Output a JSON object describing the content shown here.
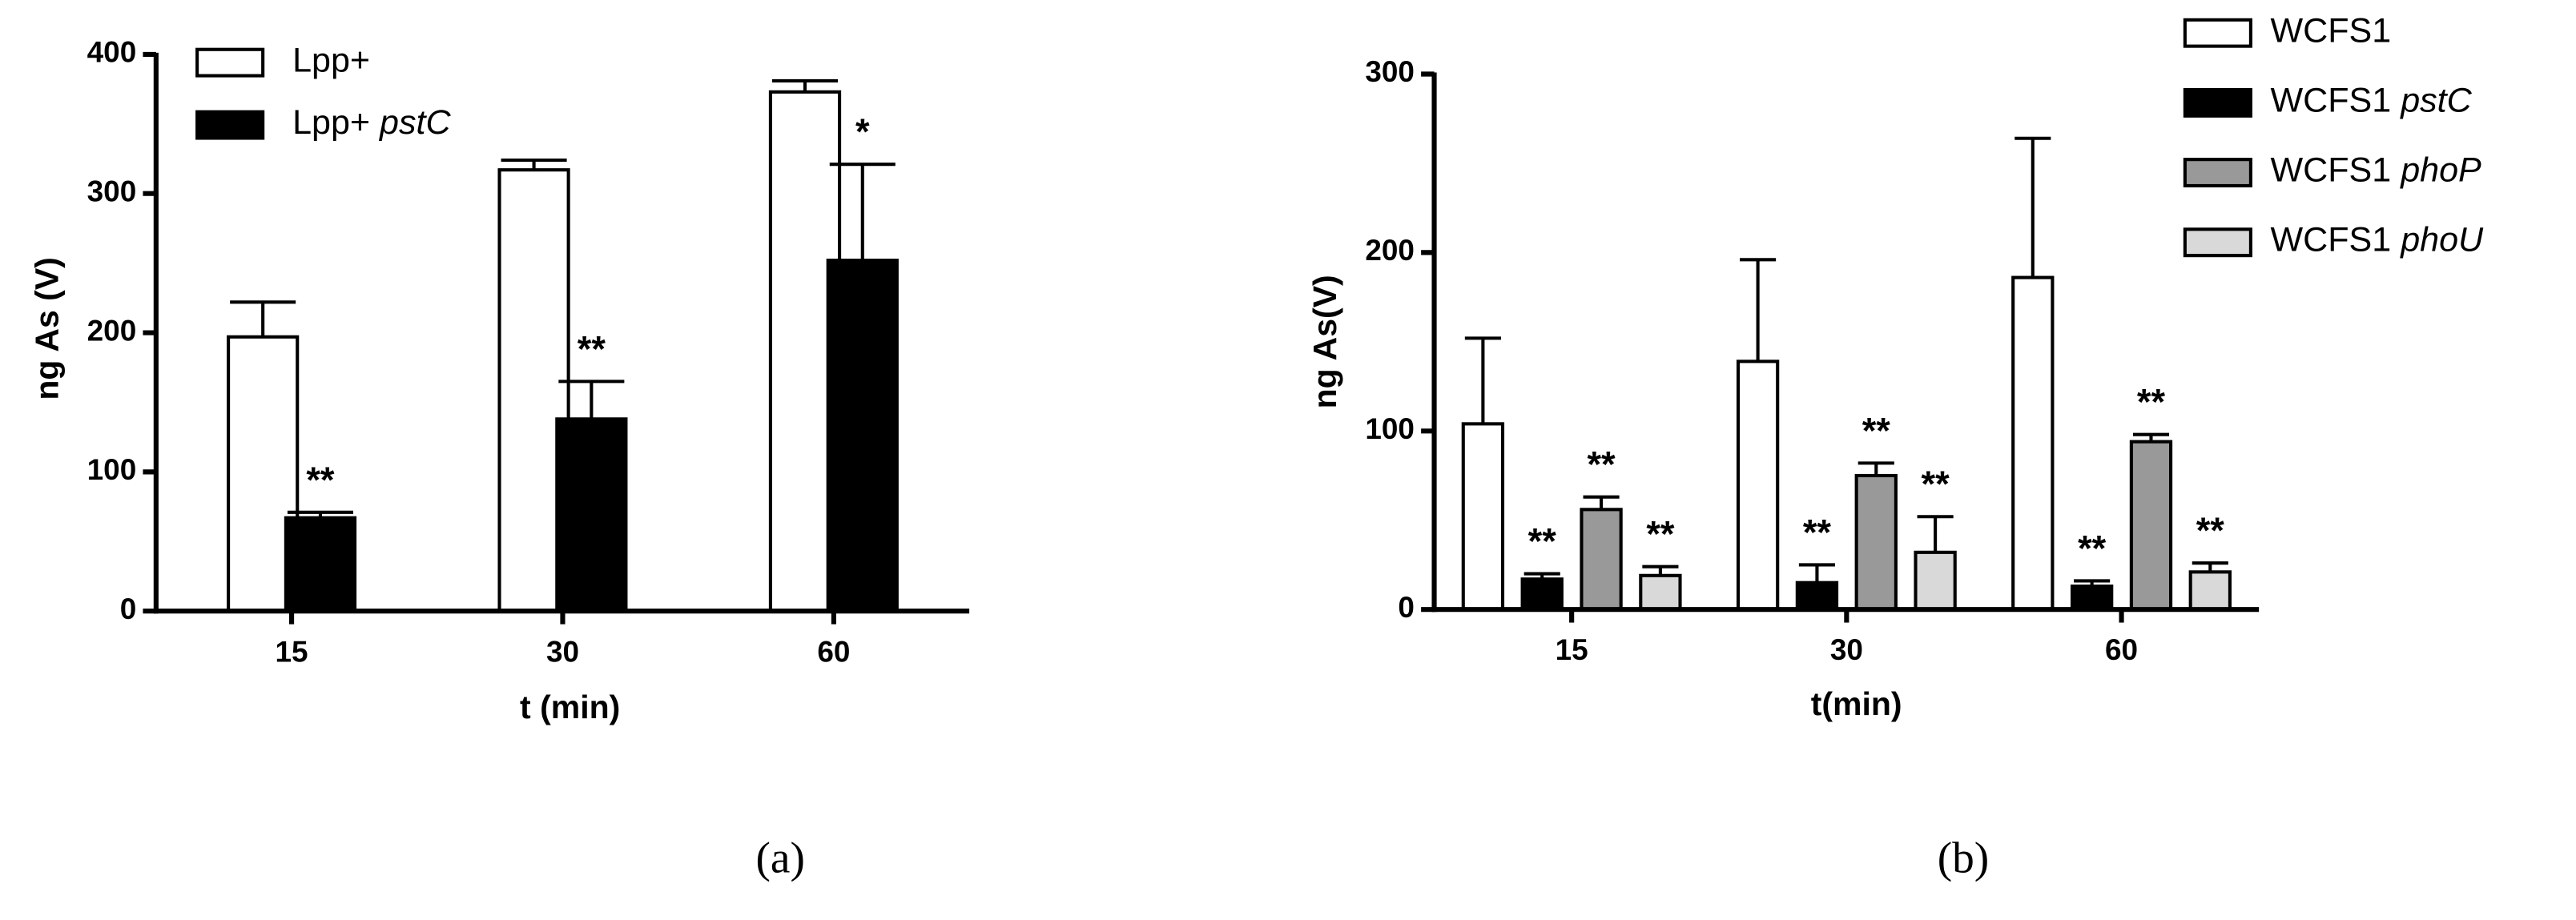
{
  "chart_data": [
    {
      "type": "bar",
      "label": "(a)",
      "ylabel": "ng As (V)",
      "xlabel": "t (min)",
      "categories": [
        "15",
        "30",
        "60"
      ],
      "ylim": [
        0,
        400
      ],
      "yticks": [
        0,
        100,
        200,
        300,
        400
      ],
      "series": [
        {
          "name": "Lpp+",
          "color": "#ffffff",
          "values": [
            197,
            317,
            373
          ],
          "errors": [
            25,
            7,
            8
          ],
          "significance": [
            null,
            null,
            null
          ]
        },
        {
          "name": "Lpp+ pstC",
          "color": "#000000",
          "values": [
            67,
            138,
            252
          ],
          "errors": [
            4,
            27,
            69
          ],
          "significance": [
            "**",
            "**",
            "*"
          ]
        }
      ]
    },
    {
      "type": "bar",
      "label": "(b)",
      "ylabel": "ng As(V)",
      "xlabel": "t(min)",
      "categories": [
        "15",
        "30",
        "60"
      ],
      "ylim": [
        0,
        300
      ],
      "yticks": [
        0,
        100,
        200,
        300
      ],
      "series": [
        {
          "name": "WCFS1",
          "color": "#ffffff",
          "values": [
            104,
            139,
            186
          ],
          "errors": [
            48,
            57,
            78
          ],
          "significance": [
            null,
            null,
            null
          ]
        },
        {
          "name": "WCFS1 pstC",
          "color": "#000000",
          "values": [
            17,
            15,
            13
          ],
          "errors": [
            3,
            10,
            3
          ],
          "significance": [
            "**",
            "**",
            "**"
          ]
        },
        {
          "name": "WCFS1 phoP",
          "color": "#999999",
          "values": [
            56,
            75,
            94
          ],
          "errors": [
            7,
            7,
            4
          ],
          "significance": [
            "**",
            "**",
            "**"
          ]
        },
        {
          "name": "WCFS1 phoU",
          "color": "#d9d9d9",
          "values": [
            19,
            32,
            21
          ],
          "errors": [
            5,
            20,
            5
          ],
          "significance": [
            "**",
            "**",
            "**"
          ]
        }
      ]
    }
  ]
}
